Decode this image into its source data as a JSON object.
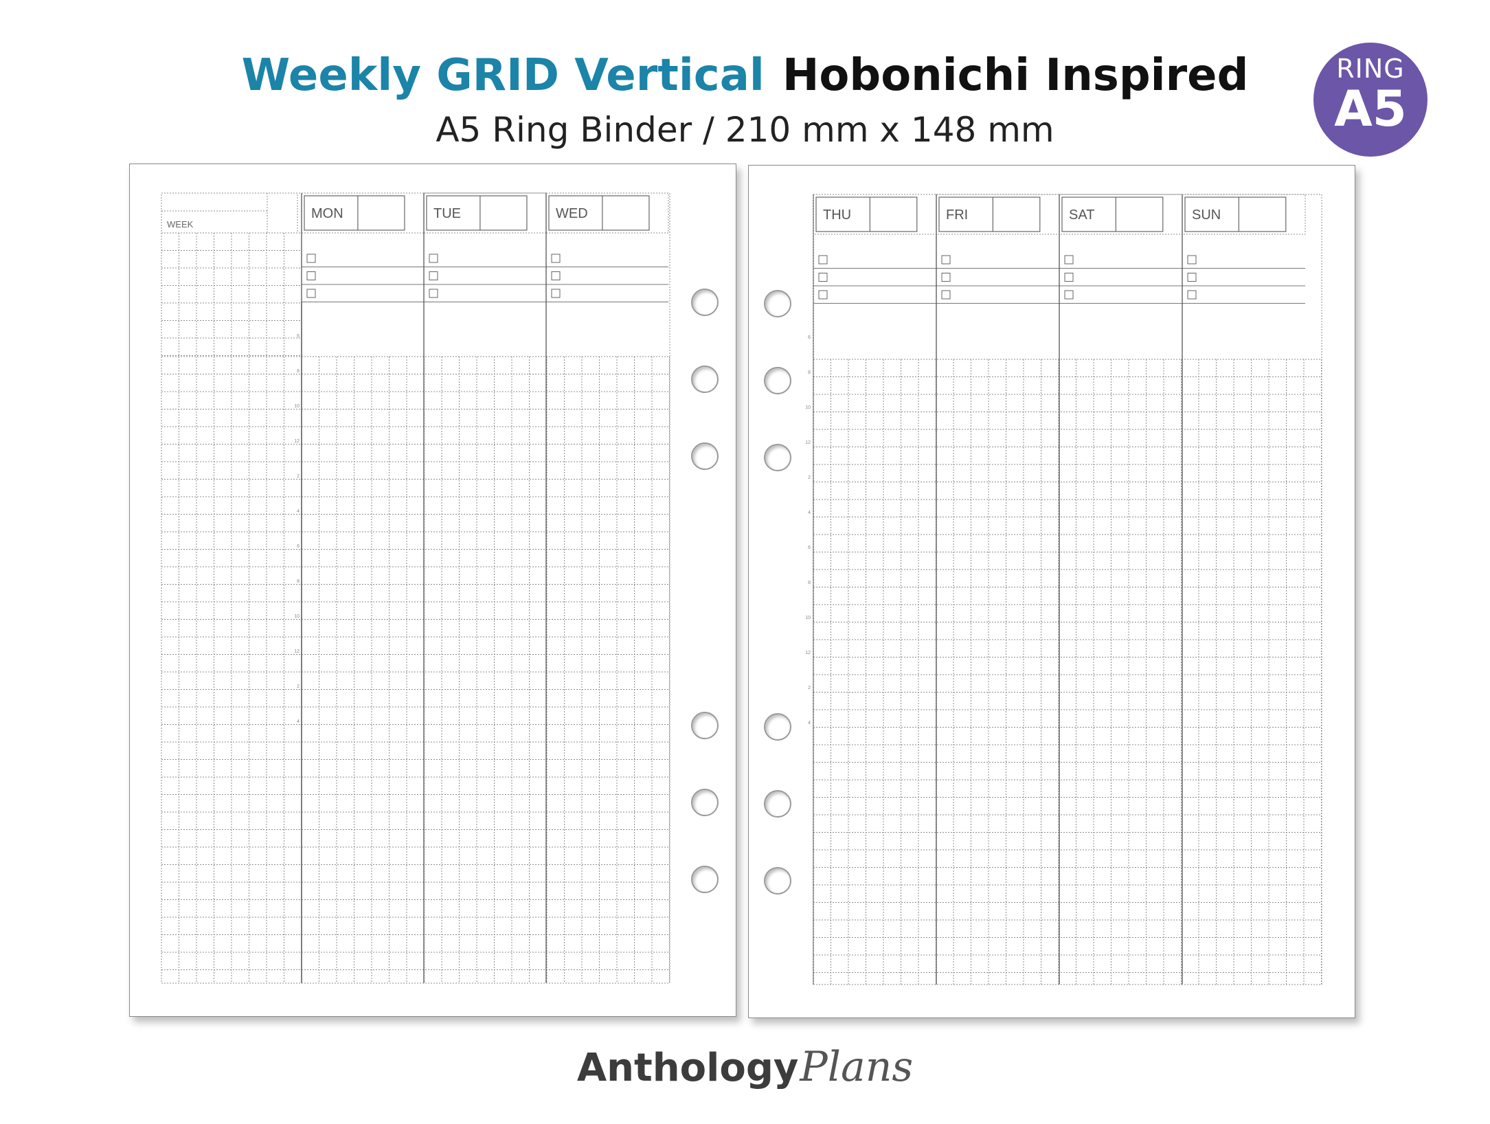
{
  "header": {
    "title_main": "Weekly GRID Vertical",
    "title_secondary": "Hobonichi Inspired",
    "subtitle": "A5 Ring Binder / 210 mm x 148 mm"
  },
  "badge": {
    "line1": "RING",
    "line2": "A5",
    "color": "#6b56a8"
  },
  "colors": {
    "title_accent": "#1b84a8",
    "grid": "#8c8c8c"
  },
  "left_page": {
    "week_label": "WEEK",
    "days": [
      "MON",
      "TUE",
      "WED"
    ],
    "time_labels": [
      "6",
      "8",
      "10",
      "12",
      "2",
      "4",
      "6",
      "8",
      "10",
      "12",
      "2",
      "4"
    ]
  },
  "right_page": {
    "days": [
      "THU",
      "FRI",
      "SAT",
      "SUN"
    ],
    "time_labels": [
      "6",
      "8",
      "10",
      "12",
      "2",
      "4",
      "6",
      "8",
      "10",
      "12",
      "2",
      "4"
    ]
  },
  "footer": {
    "brand_bold": "Anthology",
    "brand_script": "Plans"
  }
}
